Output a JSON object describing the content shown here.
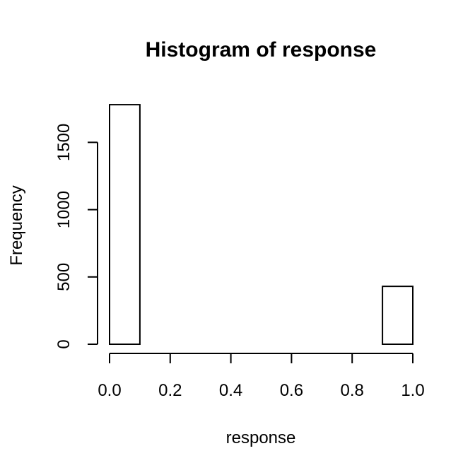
{
  "chart_data": {
    "type": "bar",
    "title": "Histogram of response",
    "xlabel": "response",
    "ylabel": "Frequency",
    "bins": [
      {
        "start": 0.0,
        "end": 0.1,
        "count": 1780
      },
      {
        "start": 0.1,
        "end": 0.2,
        "count": 0
      },
      {
        "start": 0.2,
        "end": 0.3,
        "count": 0
      },
      {
        "start": 0.3,
        "end": 0.4,
        "count": 0
      },
      {
        "start": 0.4,
        "end": 0.5,
        "count": 0
      },
      {
        "start": 0.5,
        "end": 0.6,
        "count": 0
      },
      {
        "start": 0.6,
        "end": 0.7,
        "count": 0
      },
      {
        "start": 0.7,
        "end": 0.8,
        "count": 0
      },
      {
        "start": 0.8,
        "end": 0.9,
        "count": 0
      },
      {
        "start": 0.9,
        "end": 1.0,
        "count": 430
      }
    ],
    "x_ticks": [
      0.0,
      0.2,
      0.4,
      0.6,
      0.8,
      1.0
    ],
    "x_tick_labels": [
      "0.0",
      "0.2",
      "0.4",
      "0.6",
      "0.8",
      "1.0"
    ],
    "y_ticks": [
      0,
      500,
      1000,
      1500
    ],
    "y_tick_labels": [
      "0",
      "500",
      "1000",
      "1500"
    ],
    "xlim": [
      0.0,
      1.0
    ],
    "ylim": [
      0,
      1780
    ],
    "grid": false,
    "legend": "none"
  }
}
